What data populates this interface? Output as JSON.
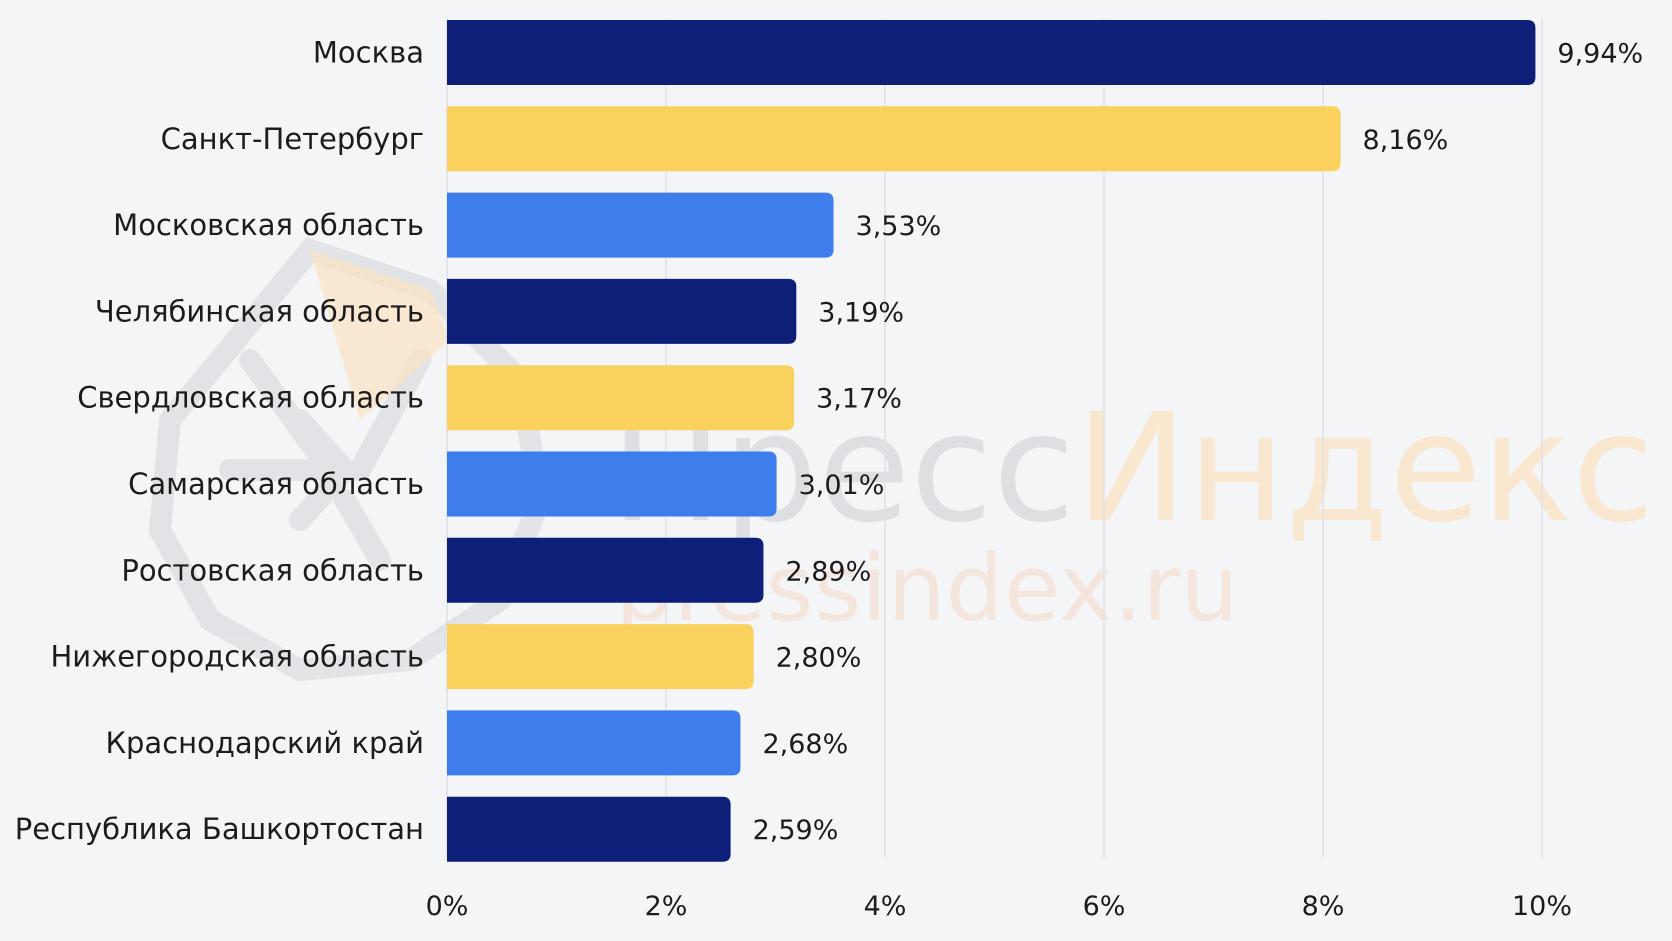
{
  "chart_data": {
    "type": "bar",
    "orientation": "horizontal",
    "title": "",
    "xlabel": "",
    "ylabel": "",
    "categories": [
      "Москва",
      "Санкт-Петербург",
      "Московская область",
      "Челябинская область",
      "Свердловская область",
      "Самарская область",
      "Ростовская область",
      "Нижегородская область",
      "Краснодарский край",
      "Республика Башкортостан"
    ],
    "values": [
      9.94,
      8.16,
      3.53,
      3.19,
      3.17,
      3.01,
      2.89,
      2.8,
      2.68,
      2.59
    ],
    "value_labels": [
      "9,94%",
      "8,16%",
      "3,53%",
      "3,19%",
      "3,17%",
      "3,01%",
      "2,89%",
      "2,80%",
      "2,68%",
      "2,59%"
    ],
    "xlim": [
      0,
      10
    ],
    "xticks": [
      0,
      2,
      4,
      6,
      8,
      10
    ],
    "xtick_labels": [
      "0%",
      "2%",
      "4%",
      "6%",
      "8%",
      "10%"
    ],
    "grid": "vertical",
    "legend": "none",
    "bar_colors": [
      "#0d1f78",
      "#fad15c",
      "#3d7eec",
      "#0d1f78",
      "#fad15c",
      "#3d7eec",
      "#0d1f78",
      "#fad15c",
      "#3d7eec",
      "#0d1f78"
    ]
  },
  "watermark": {
    "brand_part1": "Пресс",
    "brand_part2": "Индекс",
    "domain": "pressindex.ru",
    "logo": "pressindex-logo-icon",
    "color_primary": "#cfd1d6",
    "color_accent": "#fbe2c2"
  },
  "colors": {
    "background": "#f4f5f7",
    "grid": "#dfe1e5",
    "text": "#1c1c1c"
  }
}
